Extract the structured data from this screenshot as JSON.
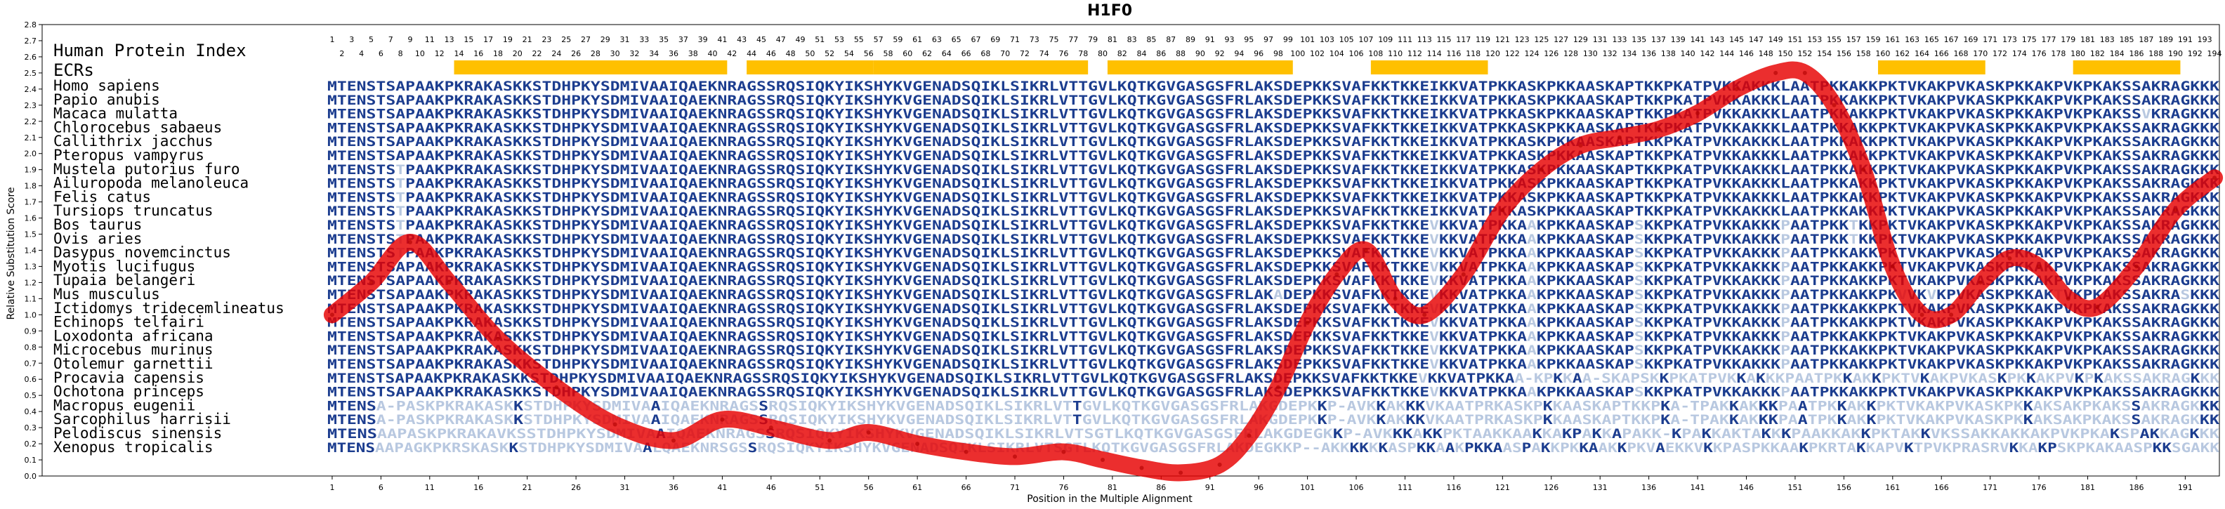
{
  "chart_data": {
    "type": "line",
    "title": "H1F0",
    "xlabel": "Position in the Multiple Alignment",
    "ylabel": "Relative Substitution Score",
    "xlim": [
      1,
      194
    ],
    "ylim": [
      0,
      2.8
    ],
    "yticks": [
      "0.0",
      "0.1",
      "0.2",
      "0.3",
      "0.4",
      "0.5",
      "0.6",
      "0.7",
      "0.8",
      "0.9",
      "1.0",
      "1.1",
      "1.2",
      "1.3",
      "1.4",
      "1.5",
      "1.6",
      "1.7",
      "1.8",
      "1.9",
      "2.0",
      "2.1",
      "2.2",
      "2.3",
      "2.4",
      "2.5",
      "2.6",
      "2.7",
      "2.8"
    ],
    "xticks": [
      "1",
      "6",
      "11",
      "16",
      "21",
      "26",
      "31",
      "36",
      "41",
      "46",
      "51",
      "56",
      "61",
      "66",
      "71",
      "76",
      "81",
      "86",
      "91",
      "96",
      "101",
      "106",
      "111",
      "116",
      "121",
      "126",
      "131",
      "136",
      "141",
      "146",
      "151",
      "156",
      "161",
      "166",
      "171",
      "176",
      "181",
      "186",
      "191"
    ],
    "human_index_label": "Human Protein Index",
    "human_index_odd": [
      "1",
      "3",
      "5",
      "7",
      "9",
      "11",
      "13",
      "15",
      "17",
      "19",
      "21",
      "23",
      "25",
      "27",
      "29",
      "31",
      "33",
      "35",
      "37",
      "39",
      "41",
      "43",
      "45",
      "47",
      "49",
      "51",
      "53",
      "55",
      "57",
      "59",
      "61",
      "63",
      "65",
      "67",
      "69",
      "71",
      "73",
      "75",
      "77",
      "79",
      "81",
      "83",
      "85",
      "87",
      "89",
      "91",
      "93",
      "95",
      "97",
      "99",
      "101",
      "103",
      "105",
      "107",
      "109",
      "111",
      "113",
      "115",
      "117",
      "119",
      "121",
      "123",
      "125",
      "127",
      "129",
      "131",
      "133",
      "135",
      "137",
      "139",
      "141",
      "143",
      "145",
      "147",
      "149",
      "151",
      "153",
      "155",
      "157",
      "159",
      "161",
      "163",
      "165",
      "167",
      "169",
      "171",
      "173",
      "175",
      "177",
      "179",
      "181",
      "183",
      "185",
      "187",
      "189",
      "191",
      "193"
    ],
    "human_index_even": [
      "2",
      "4",
      "6",
      "8",
      "10",
      "12",
      "14",
      "16",
      "18",
      "20",
      "22",
      "24",
      "26",
      "28",
      "30",
      "32",
      "34",
      "36",
      "38",
      "40",
      "42",
      "44",
      "46",
      "48",
      "50",
      "52",
      "54",
      "56",
      "58",
      "60",
      "62",
      "64",
      "66",
      "68",
      "70",
      "72",
      "74",
      "76",
      "78",
      "80",
      "82",
      "84",
      "86",
      "88",
      "90",
      "92",
      "94",
      "96",
      "98",
      "100",
      "102",
      "104",
      "106",
      "108",
      "110",
      "112",
      "114",
      "116",
      "118",
      "120",
      "122",
      "124",
      "126",
      "128",
      "130",
      "132",
      "134",
      "136",
      "138",
      "140",
      "142",
      "144",
      "146",
      "148",
      "150",
      "152",
      "154",
      "156",
      "158",
      "160",
      "162",
      "164",
      "166",
      "168",
      "170",
      "172",
      "174",
      "176",
      "178",
      "180",
      "182",
      "184",
      "186",
      "188",
      "190",
      "192",
      "194"
    ],
    "ecr_label": "ECRs",
    "ecr_regions": [
      [
        14,
        41
      ],
      [
        44,
        56
      ],
      [
        57,
        78
      ],
      [
        81,
        99
      ],
      [
        108,
        119
      ],
      [
        160,
        170
      ],
      [
        180,
        190
      ]
    ],
    "series": [
      {
        "points": [
          [
            1,
            1.0
          ],
          [
            5,
            1.2
          ],
          [
            9,
            1.45
          ],
          [
            13,
            1.2
          ],
          [
            18,
            0.85
          ],
          [
            24,
            0.55
          ],
          [
            30,
            0.32
          ],
          [
            36,
            0.22
          ],
          [
            41,
            0.35
          ],
          [
            46,
            0.3
          ],
          [
            52,
            0.22
          ],
          [
            56,
            0.27
          ],
          [
            61,
            0.2
          ],
          [
            66,
            0.15
          ],
          [
            71,
            0.12
          ],
          [
            76,
            0.15
          ],
          [
            80,
            0.1
          ],
          [
            84,
            0.05
          ],
          [
            88,
            0.02
          ],
          [
            92,
            0.07
          ],
          [
            95,
            0.25
          ],
          [
            98,
            0.55
          ],
          [
            101,
            0.95
          ],
          [
            104,
            1.25
          ],
          [
            107,
            1.4
          ],
          [
            110,
            1.1
          ],
          [
            113,
            1.0
          ],
          [
            117,
            1.25
          ],
          [
            121,
            1.65
          ],
          [
            125,
            1.9
          ],
          [
            129,
            2.05
          ],
          [
            133,
            2.1
          ],
          [
            137,
            2.15
          ],
          [
            141,
            2.25
          ],
          [
            145,
            2.4
          ],
          [
            149,
            2.5
          ],
          [
            152,
            2.5
          ],
          [
            155,
            2.3
          ],
          [
            158,
            1.9
          ],
          [
            161,
            1.3
          ],
          [
            164,
            1.0
          ],
          [
            167,
            1.0
          ],
          [
            170,
            1.2
          ],
          [
            173,
            1.35
          ],
          [
            176,
            1.3
          ],
          [
            179,
            1.1
          ],
          [
            182,
            1.05
          ],
          [
            186,
            1.3
          ],
          [
            190,
            1.65
          ],
          [
            194,
            1.85
          ]
        ]
      }
    ],
    "sequence_colors": {
      "dark": "#1c3d8f",
      "light": "#b8c8e0"
    },
    "alignment": [
      {
        "species": "Homo sapiens",
        "seq": "MTENSTSAPAAKPKRAKASKKSTDHPKYSDMIVAAIQAEKNRAGSSRQSIQKYIKSHYKVGENADSQIKLSIKRLVTTGVLKQTKGVGASGSFRLAKSDEPKKSVAFKKTKKEIKKVATPKKASKPKKAASKAPTKKPKATPVKKAKKKLAATPKKAKKPKTVKAKPVKASKPKKAKPVKPKAKSSAKRAGKKK"
      },
      {
        "species": "Papio anubis",
        "seq": "MTENSTSAPAAKPKRAKASKKSTDHPKYSDMIVAAIQAEKNRAGSSRQSIQKYIKSHYKVGENADSQIKLSIKRLVTTGVLKQTKGVGASGSFRLAKSDEPKKSVAFKKTKKEIKKVATPKKASKPKKAASKAPTKKPKATPVKKAKKKLAATPKKAKKPKTVKAKPVKASKPKKAKPVKPKAKSSAKRAGKKK"
      },
      {
        "species": "Macaca mulatta",
        "seq": "MTENSTSAPAAKPKRAKASKKSTDHPKYSDMIVAAIQAEKNRAGSSRQSIQKYIKSHYKVGENADSQIKLSIKRLVTTGVLKQTKGVGASGSFRLAKSDEPKKSVAFKKTKKEIKKVATPKKASKPKKAASKAPTKKPKATPVKKAKKKLAATPKKAKKPKTVKAKPVKASKPKKAKPVKPKAKSSVKRAGKKK"
      },
      {
        "species": "Chlorocebus sabaeus",
        "seq": "MTENSTSAPAAKPKRAKASKKSTDHPKYSDMIVAAIQAEKNRAGSSRQSIQKYIKSHYKVGENADSQIKLSIKRLVTTGVLKQTKGVGASGSFRLAKSDEPKKSVAFKKTKKEIKKVATPKKASKPKKAASKAPTKKPKATPVKKAKKKLAATPKKAKKPKTVKAKPVKASKPKKAKPVKPKAKSSAKRAGKKK"
      },
      {
        "species": "Callithrix jacchus",
        "seq": "MTENSTSAPAAKPKRAKASKKSTDHPKYSDMIVAAIQAEKNRAGSSRQSIQKYIKSHYKVGENADSQIKLSIKRLVTTGVLKQTKGVGASGSFRLAKSDEPKKSVAFKKTKKEIKKVATPKKASKPKKAASKAPTKKPKATPVKKAKKKLAATPKKAKKPKTVKAKPVKASKPKKAKPVKPKAKSSAKRAGKKK"
      },
      {
        "species": "Pteropus vampyrus",
        "seq": "MTENSTSAPAAKPKRAKASKKSTDHPKYSDMIVAAIQAEKNRAGSSRQSIQKYIKSHYKVGENADSQIKLSIKRLVTTGVLKQTKGVGASGSFRLAKSDEPKKSVAFKKTKKEIKKVATPKKASKPKKAASKAPTKKPKATPVKKAKKKLAATPKKAKKPKTVKAKPVKASKPKKAKPVKPKAKSSAKRAGKKK"
      },
      {
        "species": "Mustela putorius furo",
        "seq": "MTENSTSTPAAKPKRAKASKKSTDHPKYSDMIVAAIQAEKNRAGSSRQSIQKYIKSHYKVGENADSQIKLSIKRLVTTGVLKQTKGVGASGSFRLAKSDEPKKSVAFKKTKKEIKKVATPKKASKPKKAASKAPTKKPKATPVKKAKKKLAATPKKAKKPKTVKAKPVKASKPKKAKPVKPKAKSSAKRAGKKK"
      },
      {
        "species": "Ailuropoda melanoleuca",
        "seq": "MTENSTSTPAAKPKRAKASKKSTDHPKYSDMIVAAIQAEKNRAGSSRQSIQKYIKSHYKVGENADSQIKLSIKRLVTTGVLKQTKGVGASGSFRLAKSDEPKKSVAFKKTKKEIKKVATPKKASKPKKAASKAPTKKPKATPVKKAKKKLAATPKKAKKPKTVKAKPVKASKPKKAKPVKPKAKSSAKRAGKKK"
      },
      {
        "species": "Felis catus",
        "seq": "MTENSTSTPAAKPKRAKASKKSTDHPKYSDMIVAAIQAEKNRAGSSRQSIQKYIKSHYKVGENADSQIKLSIKRLVTTGVLKQTKGVGASGSFRLAKSDEPKKSVAFKKTKKEIKKVATPKKASKPKKAASKAPTKKPKATPVKKAKKKLAATPKKAKKPKTVKAKPVKASKPKKAKPVKPKAKSSAKRAGKKK"
      },
      {
        "species": "Tursiops truncatus",
        "seq": "MTENSTSTPAAKPKRAKASKKSTDHPKYSDMIVAAIQAEKNRAGSSRQSIQKYIKSHYKVGENADSQIKLSIKRLVTTGVLKQTKGVGASGSFRLAKSDEPKKSVAFKKTKKEIKKVATPKKASKPKKAASKAPTKKPKATPVKKAKKKLAATPKKAKKPKTVKAKPVKASKPKKAKPVKPKAKSSAKRAGKKK"
      },
      {
        "species": "Bos taurus",
        "seq": "MTENSTSTPAAKPKRAKASKKSTDHPKYSDMIVAAIQAEKNRAGSSRQSIQKYIKSHYKVGENADSQIKLSIKRLVTTGVLKQTKGVGASGSFRLAKSDEPKKSVAFKKTKKEVKKVATPKKAAKPKKAASKAPSKKPKATPVKKAKKKPAATPKKTKKPKTVKAKPVKASKPKKAKPVKPKAKSSAKRAGKKK"
      },
      {
        "species": "Ovis aries",
        "seq": "MTENSTSTPAAKPKRAKASKKSTDHPKYSDMIVAAIQAEKNRAGSSRQSIQKYIKSHYKVGENADSQIKLSIKRLVTTGVLKQTKGVGASGSFRLAKSDEPKKSVAFKKTKKEVKKVATPKKAAKPKKAASKAPSKKPKATPVKKAKKKPAATPKKTKKPKTVKAKPVKASKPKKAKPVKPKAKSSAKRAGKKK"
      },
      {
        "species": "Dasypus novemcinctus",
        "seq": "MTENSTSTPAAKPKRAKASKKSTDHPKYSDMIVAAIQAEKNRAGSSRQSIQKYIKSHYKVGENADSQIKLSIKRLVTTGVLKQTKGVGASGSFRLAKSDEPKKSVAFKKTKKEVKKVATPKKAAKPKKAASKAPSKKPKATPVKKAKKKPAATPKKAKKPKTVKAKPVKASKPKKAKPVKPKAKSSAKRAGKKK"
      },
      {
        "species": "Myotis lucifugus",
        "seq": "MTENSTSAPAAKPKRAKASKKSTDHPKYSDMIVAAIQAEKNRAGSSRQSIQKYIKSHYKVGENADSQIKLSIKRLVTTGVLKQTKGVGASGSFRLAKSDEPKKSVAFKKTKKEVKKVATPKKAAKPKKAASKAPSKKPKATPVKKAKKKPAATPKKAKKPKTVKAKPVKASKPKKAKPVKPKAKSSAKRAGKKK"
      },
      {
        "species": "Tupaia belangeri",
        "seq": "MTENSTSAPAAKPKRAKASKKSTDHPKYSDMIVAAIQAEKNRAGSSRQSIQKYIKSHYKVGENADSQIKLSIKRLVTTGVLKQTKGVGASGSFRLAKSDEPKKSVAFKKTKKEVKKVATPKKAAKPKKAASKAPSKKPKATPVKKAKKKPAATPKKAKKPKTVKAKPVKASKPKKAKPVKPKAKSSAKRAGKKK"
      },
      {
        "species": "Mus musculus",
        "seq": "MTENSTSAPAAKPKRAKASKKSTDHPKYSDMIVAAIQAEKNRAGSSRQSIQKYIKSHYKVGENADSQIKLSIKRLVTTGVLKQTKGVGASGSFRLAKADEPKKSVAFKKTKKEVKKVATPKKAAKPKKAASKAPSKKPKATPVKKAKKKPAATPKKAKKPKVVKVKPVKASKPKKAKTVKPKAKSSAKRASKKK"
      },
      {
        "species": "Ictidomys tridecemlineatus",
        "seq": "MTENSTSAPAAKPKRAKASKKSTDHPKYSDMIVAAIQAEKNRAGSSRQSIQKYIKSHYKVGENADSQIKLSIKRLVTTGVLKQTKGVGASGSFRLAKSDEPKKSVAFKKTKKEVKKVATPKKAAKPKKAASKAPSKKPKATPVKKAKKKPAATPKKAKKPKTVKAKPVKASKPKKAKPVKPKAKSSAKRAGKKK"
      },
      {
        "species": "Echinops telfairi",
        "seq": "MTENSTSAPAAKPKRAKASKKSTDHPKYSDMIVAAIQAEKNRAGSSRQSIQKYIKSHYKVGENADSQIKLSIKRLVTTGVLKQTKGVGASGSFRLAKSDEPKKSVAFKKTKKEVKKVATPKKAAKPKKAASKAPSKKPKATPVKKAKKKPAATPKKAKKPKTVKAKPVKASKPKKAKPVKPKAKSSAKRAGKKK"
      },
      {
        "species": "Loxodonta africana",
        "seq": "MTENSTSAPAAKPKRAKASKKSTDHPKYSDMIVAAIQAEKNRAGSSRQSIQKYIKSHYKVGENADSQIKLSIKRLVTTGVLKQTKGVGASGSFRLAKSDEPKKSVAFKKTKKEVKKVATPKKAAKPKKAASKAPSKKPKATPVKKAKKKPAATPKKAKKPKTVKAKPVKASKPKKAKPVKPKAKSSAKRAGKKK"
      },
      {
        "species": "Microcebus murinus",
        "seq": "MTENSTSAPAAKPKRAKASKKSTDHPKYSDMIVAAIQAEKNRAGSSRQSIQKYIKSHYKVGENADSQIKLSIKRLVTTGVLKQTKGVGASGSFRLAKSDEPKKSVAFKKTKKEVKKVATPKKAAKPKKAASKAPSKKPKATPVKKAKKKPAATPKKAKKPKTVKAKPVKASKPKKAKPVKPKAKSSAKRAGKKK"
      },
      {
        "species": "Otolemur garnettii",
        "seq": "MTENSTSAPAAKPKRAKASKKSTDHPKYSDMIVAAIQAEKNRAGSSRQSIQKYIKSHYKVGENADSQIKLSIKRLVTTGVLKQTKGVGASGSFRLAKSDEPKKSVAFKKTKKEVKKVATPKKAAKPKKAASKAPSKKPKATPVKKAKKKPAATPKKAKKPKTVKAKPVKASKPKKAKPVKPKAKSSAKRAGKKK"
      },
      {
        "species": "Procavia capensis",
        "seq": "MTENSTSAPAAKPKRAKASKKSTDHPKYSDMIVAAIQAEKNRAGSSRQSIQKYIKSHYKVGENADSQIKLSIKRLVTTGVLKQTKGVGASGSFRLAKSDEPKKSVAFKKTKKEVKKVATPKKAA-KPKKAA-SKAPSKKPKATPVKKAKKKPAATPKKAKKPKTVKAKPVKASKPKKAKPVKPKAKSSAKRAGKKK"
      },
      {
        "species": "Ochotona princeps",
        "seq": "MTENSTSAPAAKPKRAKASKKSTDHPKYSDMIVAAIQAEKNRAGSSRQSIQKYIKSHYKVGENADSQIKLSIKRLVTTGVLKQTKGVGASGSFRLAKSDEPKKSVAFKKTKKEVKKVATPKKAAKPKKAASKAPSKKPKATPVKKAKKKPAATPKKAKKPKTVKAKPVKASKPKKAKPVKPKAKSSAKRAGKKK"
      },
      {
        "species": "Macropus eugenii",
        "seq": "MTENSA-PASKPKRAKASKKSTDHPKYSDMIVAAIQAEKNRAGSSRQSIQKYIKSHYKVGENADSQIKLSIKRLVTTGVLKQTKGVGASGSFRLAKGDEPKKP-AVKKAKKKVKAATPRKASKPKKAASKAPTKKPKA-TPAKKAKKKPAATPKKAKKPKTVKAKPVKASKPKKAKSAKPKAKSSAKRAGKKK"
      },
      {
        "species": "Sarcophilus harrisii",
        "seq": "MTENSA-PASKPKRAKASKKSTDHPKYSDMIVAAIQAEKNRAGSSRQSIQKYIKSHYKVGENADSQIKLSIKRLVTTGVLKQTKGVGASGSFRLAKGDEPKKP-AVKKAKKKVKAATPRKASKPKKAASKAPTKKPKA-TPAKKAKKKPAATPKKAKKPKTVKAKPVKASKPKKAKSAKPKAKSSAKRAGKKK"
      },
      {
        "species": "Pelodiscus sinensis",
        "seq": "MTENSAAPASKPKRAKAVKSSTDHPKYSDMIVAAIQAEKNRAGSSRQSIQKYIKSHYKVGENADSQIKLSIKRLVTSGTLKQTKGVGASGSFRLAKGDEGKKP-AVKKKAKKPKTAAKKAAKKAKPAKKAPAKK-KPAKKAKTAKKKPAAKKAKKPKTAKKVKSSAKKAKKAKPVKPKAKSPAKKAGKKK"
      },
      {
        "species": "Xenopus tropicalis",
        "seq": "MTENSAAPAGKPKRSKASKKSTDHPKYSDMIVAALQAEKNRSGSSRQSIQKYIKSHYKVGENADSQIKLSIKRLVTSGTLKQTKGVGASGSFRLAKDEGKKP--AKKKKKKASPKKAAKPKKAASPAKKPKKAAKKPKVAEKKVKKPASPKKAAKPKRTAKKAPVKTPVKPRASRVKKAKPSKPKAKAASPKKSGAKK"
      }
    ]
  }
}
